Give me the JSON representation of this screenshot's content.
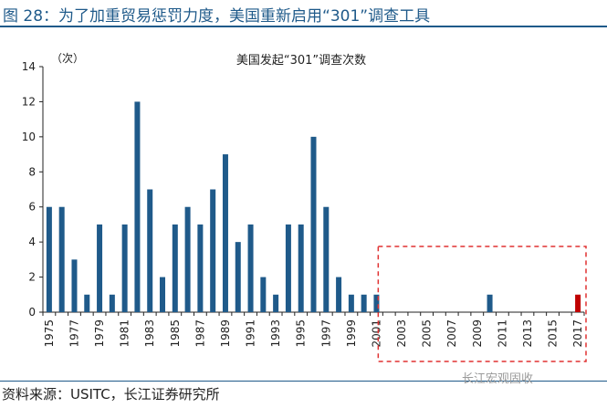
{
  "page": {
    "figure_title": "图 28：为了加重贸易惩罚力度，美国重新启用“301”调查工具",
    "source": "资料来源：USITC，长江证券研究所",
    "watermark": "长江宏观固收"
  },
  "chart_data": {
    "type": "bar",
    "title": "美国发起“301”调查次数",
    "ylabel": "（次）",
    "ylim": [
      0,
      14
    ],
    "yticks": [
      0,
      2,
      4,
      6,
      8,
      10,
      12,
      14
    ],
    "grid": false,
    "categories": [
      "1975",
      "1976",
      "1977",
      "1978",
      "1979",
      "1980",
      "1981",
      "1982",
      "1983",
      "1984",
      "1985",
      "1986",
      "1987",
      "1988",
      "1989",
      "1990",
      "1991",
      "1992",
      "1993",
      "1994",
      "1995",
      "1996",
      "1997",
      "1998",
      "1999",
      "2000",
      "2001",
      "2002",
      "2003",
      "2004",
      "2005",
      "2006",
      "2007",
      "2008",
      "2009",
      "2010",
      "2011",
      "2012",
      "2013",
      "2014",
      "2015",
      "2016",
      "2017"
    ],
    "xtick_labels": [
      "1975",
      "1977",
      "1979",
      "1981",
      "1983",
      "1985",
      "1987",
      "1989",
      "1991",
      "1993",
      "1995",
      "1997",
      "1999",
      "2001",
      "2003",
      "2005",
      "2007",
      "2009",
      "2011",
      "2013",
      "2015",
      "2017"
    ],
    "values": [
      6,
      6,
      3,
      1,
      5,
      1,
      5,
      12,
      7,
      2,
      5,
      6,
      5,
      7,
      9,
      4,
      5,
      2,
      1,
      5,
      5,
      10,
      6,
      2,
      1,
      1,
      1,
      0,
      0,
      0,
      0,
      0,
      0,
      0,
      0,
      1,
      0,
      0,
      0,
      0,
      0,
      0,
      1
    ],
    "colors": {
      "default": "#1f5a8a",
      "highlight": "#c00000",
      "box": "#e03030"
    },
    "highlight_category": "2017",
    "box_range": [
      "2002",
      "2017"
    ]
  }
}
